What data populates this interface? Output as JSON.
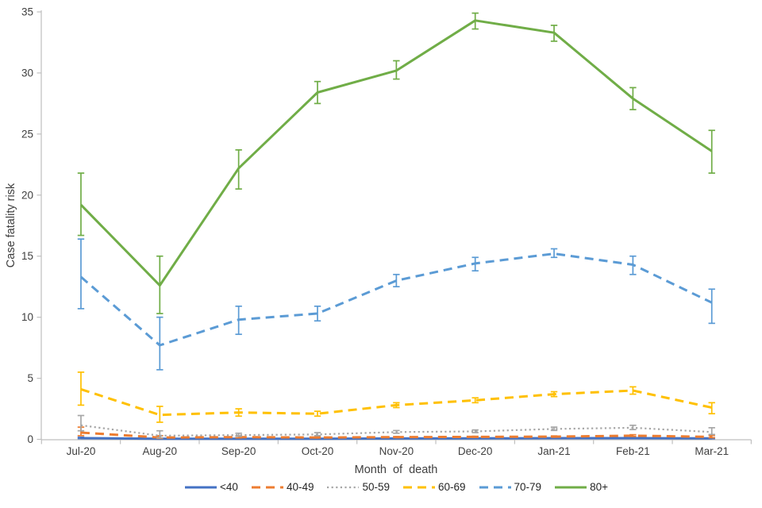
{
  "page": {
    "background": "#ffffff"
  },
  "chart_data": {
    "type": "line",
    "title": "",
    "xlabel": "Month of death",
    "ylabel": "Case fatality risk",
    "categories": [
      "Jul-20",
      "Aug-20",
      "Sep-20",
      "Oct-20",
      "Nov-20",
      "Dec-20",
      "Jan-21",
      "Feb-21",
      "Mar-21"
    ],
    "ylim": [
      0,
      35
    ],
    "yticks": [
      0,
      5,
      10,
      15,
      20,
      25,
      30,
      35
    ],
    "grid": false,
    "legend_position": "bottom",
    "error_bars": true,
    "axis_color": "#BFBFBF",
    "text_color": "#404040",
    "series": [
      {
        "name": "<40",
        "color": "#4472C4",
        "style": "solid",
        "width": 3,
        "values": [
          0.1,
          0.05,
          0.05,
          0.05,
          0.07,
          0.08,
          0.1,
          0.1,
          0.08
        ],
        "ci_low": [
          0.06,
          0.02,
          0.02,
          0.03,
          0.05,
          0.06,
          0.08,
          0.08,
          0.05
        ],
        "ci_high": [
          0.17,
          0.1,
          0.09,
          0.08,
          0.1,
          0.11,
          0.13,
          0.13,
          0.13
        ]
      },
      {
        "name": "40-49",
        "color": "#ED7D31",
        "style": "dashed",
        "width": 3,
        "values": [
          0.55,
          0.15,
          0.18,
          0.15,
          0.18,
          0.2,
          0.22,
          0.3,
          0.2
        ],
        "ci_low": [
          0.3,
          0.08,
          0.12,
          0.11,
          0.14,
          0.16,
          0.18,
          0.24,
          0.13
        ],
        "ci_high": [
          1.0,
          0.3,
          0.28,
          0.21,
          0.23,
          0.25,
          0.28,
          0.38,
          0.32
        ]
      },
      {
        "name": "50-59",
        "color": "#A6A6A6",
        "style": "dotted",
        "width": 2.2,
        "values": [
          1.15,
          0.3,
          0.35,
          0.4,
          0.6,
          0.65,
          0.85,
          0.95,
          0.6
        ],
        "ci_low": [
          0.7,
          0.12,
          0.25,
          0.3,
          0.5,
          0.55,
          0.73,
          0.8,
          0.4
        ],
        "ci_high": [
          1.95,
          0.7,
          0.5,
          0.55,
          0.72,
          0.77,
          1.0,
          1.15,
          0.95
        ]
      },
      {
        "name": "60-69",
        "color": "#FFC000",
        "style": "dashed",
        "width": 3,
        "values": [
          4.1,
          2.0,
          2.2,
          2.1,
          2.8,
          3.2,
          3.7,
          4.0,
          2.6
        ],
        "ci_low": [
          2.8,
          1.4,
          1.9,
          1.9,
          2.6,
          3.0,
          3.5,
          3.7,
          2.1
        ],
        "ci_high": [
          5.5,
          2.7,
          2.5,
          2.3,
          3.0,
          3.4,
          3.9,
          4.3,
          3.0
        ]
      },
      {
        "name": "70-79",
        "color": "#5B9BD5",
        "style": "dashed",
        "width": 3,
        "values": [
          13.3,
          7.7,
          9.8,
          10.3,
          13.0,
          14.4,
          15.2,
          14.3,
          11.2
        ],
        "ci_low": [
          10.7,
          5.7,
          8.6,
          9.7,
          12.5,
          13.8,
          14.9,
          13.5,
          9.5
        ],
        "ci_high": [
          16.4,
          10.0,
          10.9,
          10.9,
          13.5,
          14.9,
          15.6,
          15.0,
          12.3
        ]
      },
      {
        "name": "80+",
        "color": "#70AD47",
        "style": "solid",
        "width": 3,
        "values": [
          19.2,
          12.6,
          22.2,
          28.4,
          30.2,
          34.3,
          33.3,
          27.9,
          23.6
        ],
        "ci_low": [
          16.7,
          10.3,
          20.5,
          27.5,
          29.5,
          33.6,
          32.6,
          27.0,
          21.8
        ],
        "ci_high": [
          21.8,
          15.0,
          23.7,
          29.3,
          31.0,
          34.9,
          33.9,
          28.8,
          25.3
        ]
      }
    ]
  }
}
